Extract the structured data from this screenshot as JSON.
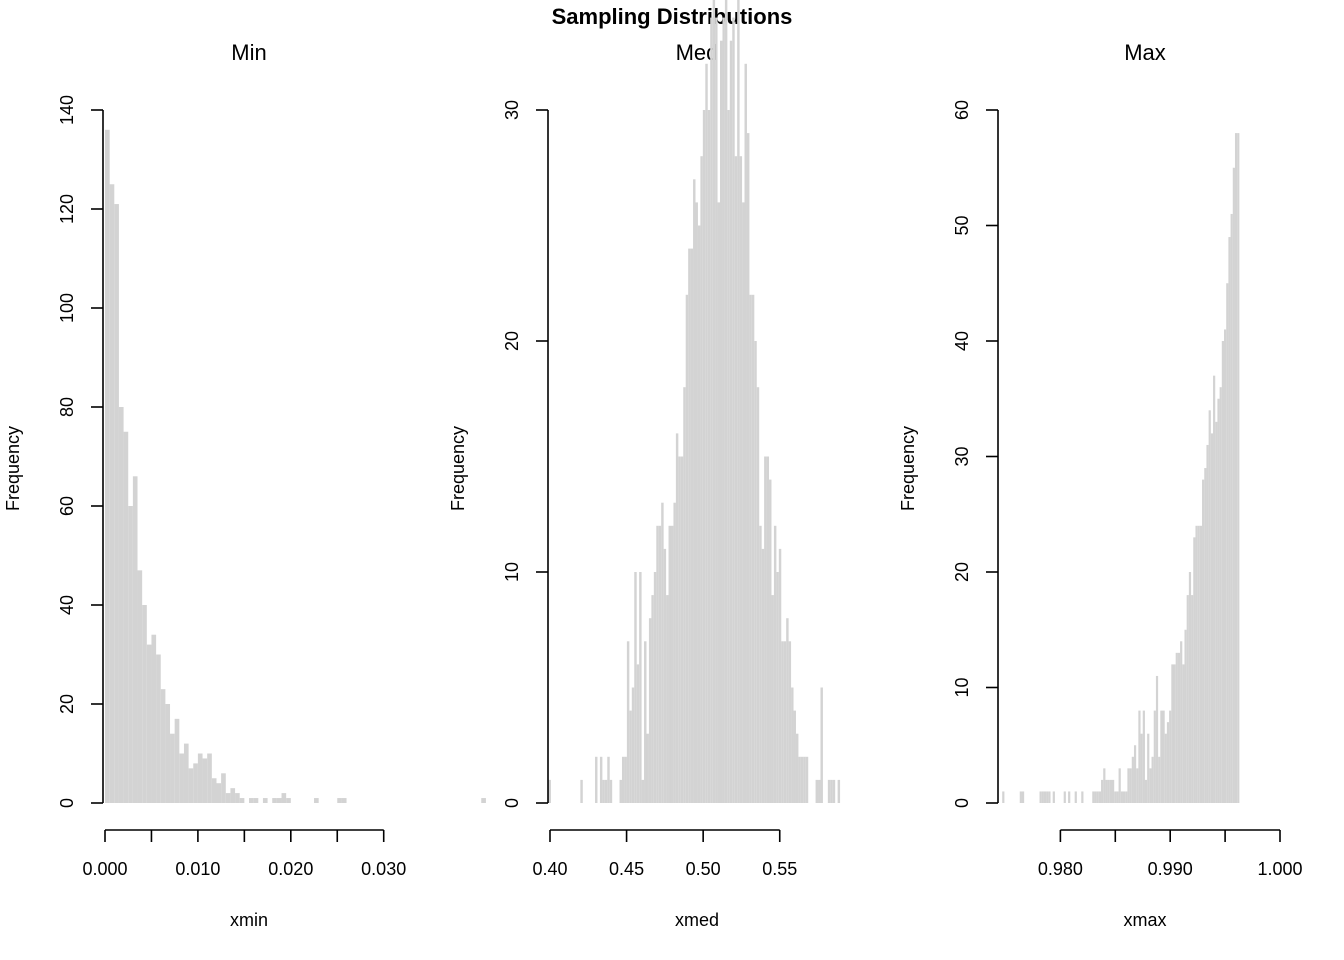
{
  "title": "Sampling Distributions",
  "chart_data": [
    {
      "type": "bar",
      "title": "Min",
      "xlabel": "xmin",
      "ylabel": "Frequency",
      "xlim": [
        0.0,
        0.031
      ],
      "ylim": [
        0,
        140
      ],
      "xticks": [
        0.0,
        0.005,
        0.01,
        0.015,
        0.02,
        0.025,
        0.03
      ],
      "xtick_labels": [
        "0.000",
        "",
        "0.010",
        "",
        "0.020",
        "",
        "0.030"
      ],
      "yticks": [
        0,
        20,
        40,
        60,
        80,
        100,
        120,
        140
      ],
      "ytick_labels": [
        "0",
        "20",
        "40",
        "60",
        "80",
        "100",
        "120",
        "140"
      ],
      "bin_start": 0.0,
      "bin_width": 0.0005,
      "counts": [
        136,
        125,
        121,
        80,
        75,
        60,
        66,
        47,
        40,
        32,
        34,
        30,
        23,
        20,
        14,
        17,
        10,
        12,
        7,
        8,
        10,
        9,
        10,
        5,
        4,
        6,
        2,
        3,
        2,
        1,
        0,
        1,
        1,
        0,
        1,
        0,
        1,
        1,
        2,
        1,
        0,
        0,
        0,
        0,
        0,
        1,
        0,
        0,
        0,
        0,
        1,
        1,
        0,
        0,
        0,
        0,
        0,
        0,
        0,
        0,
        0,
        0,
        0,
        0,
        0,
        0,
        0,
        0,
        0,
        0,
        0,
        0,
        0,
        0,
        0,
        0,
        0,
        0,
        0,
        0,
        0,
        1
      ]
    },
    {
      "type": "bar",
      "title": "Med",
      "xlabel": "xmed",
      "ylabel": "Frequency",
      "xlim": [
        0.4,
        0.59
      ],
      "ylim": [
        0,
        30
      ],
      "xticks": [
        0.4,
        0.45,
        0.5,
        0.55
      ],
      "xtick_labels": [
        "0.40",
        "0.45",
        "0.50",
        "0.55"
      ],
      "yticks": [
        0,
        10,
        20,
        30
      ],
      "ytick_labels": [
        "0",
        "10",
        "20",
        "30"
      ],
      "bin_start": 0.399,
      "bin_width": 0.0016,
      "counts": [
        1,
        0,
        0,
        0,
        0,
        0,
        0,
        0,
        0,
        0,
        0,
        0,
        0,
        1,
        0,
        0,
        0,
        0,
        0,
        2,
        0,
        2,
        1,
        1,
        2,
        1,
        0,
        0,
        0,
        1,
        2,
        2,
        7,
        4,
        5,
        10,
        6,
        10,
        1,
        7,
        3,
        8,
        9,
        10,
        12,
        12,
        13,
        11,
        9,
        12,
        12,
        13,
        16,
        15,
        15,
        18,
        22,
        24,
        24,
        27,
        26,
        25,
        28,
        30,
        32,
        30,
        34,
        37,
        34,
        26,
        33,
        34,
        36,
        30,
        33,
        34,
        28,
        37,
        28,
        26,
        32,
        29,
        22,
        22,
        20,
        18,
        12,
        11,
        15,
        15,
        14,
        9,
        12,
        10,
        11,
        7,
        7,
        8,
        7,
        5,
        4,
        3,
        2,
        2,
        2,
        2,
        0,
        0,
        0,
        1,
        1,
        5,
        0,
        0,
        1,
        1,
        1,
        0,
        1
      ]
    },
    {
      "type": "bar",
      "title": "Max",
      "xlabel": "xmax",
      "ylabel": "Frequency",
      "xlim": [
        0.9745,
        1.0
      ],
      "ylim": [
        0,
        60
      ],
      "xticks": [
        0.98,
        0.985,
        0.99,
        0.995,
        1.0
      ],
      "xtick_labels": [
        "0.980",
        "",
        "0.990",
        "",
        "1.000"
      ],
      "yticks": [
        0,
        10,
        20,
        30,
        40,
        50,
        60
      ],
      "ytick_labels": [
        "0",
        "10",
        "20",
        "30",
        "40",
        "50",
        "60"
      ],
      "bin_start": 0.9745,
      "bin_width": 0.0002,
      "counts": [
        0,
        1,
        0,
        0,
        0,
        0,
        0,
        0,
        0,
        1,
        1,
        0,
        0,
        0,
        0,
        0,
        0,
        0,
        1,
        1,
        1,
        1,
        1,
        0,
        1,
        0,
        0,
        0,
        0,
        1,
        0,
        1,
        0,
        0,
        1,
        0,
        0,
        1,
        0,
        0,
        0,
        0,
        1,
        1,
        1,
        1,
        2,
        3,
        2,
        2,
        2,
        2,
        1,
        1,
        3,
        1,
        1,
        1,
        3,
        3,
        4,
        5,
        3,
        8,
        6,
        8,
        2,
        6,
        3,
        4,
        8,
        11,
        4,
        8,
        8,
        6,
        7,
        8,
        12,
        12,
        13,
        13,
        14,
        12,
        15,
        18,
        20,
        18,
        23,
        24,
        24,
        24,
        28,
        29,
        31,
        34,
        32,
        37,
        33,
        35,
        36,
        40,
        41,
        45,
        49,
        51,
        55,
        58,
        58
      ]
    }
  ]
}
